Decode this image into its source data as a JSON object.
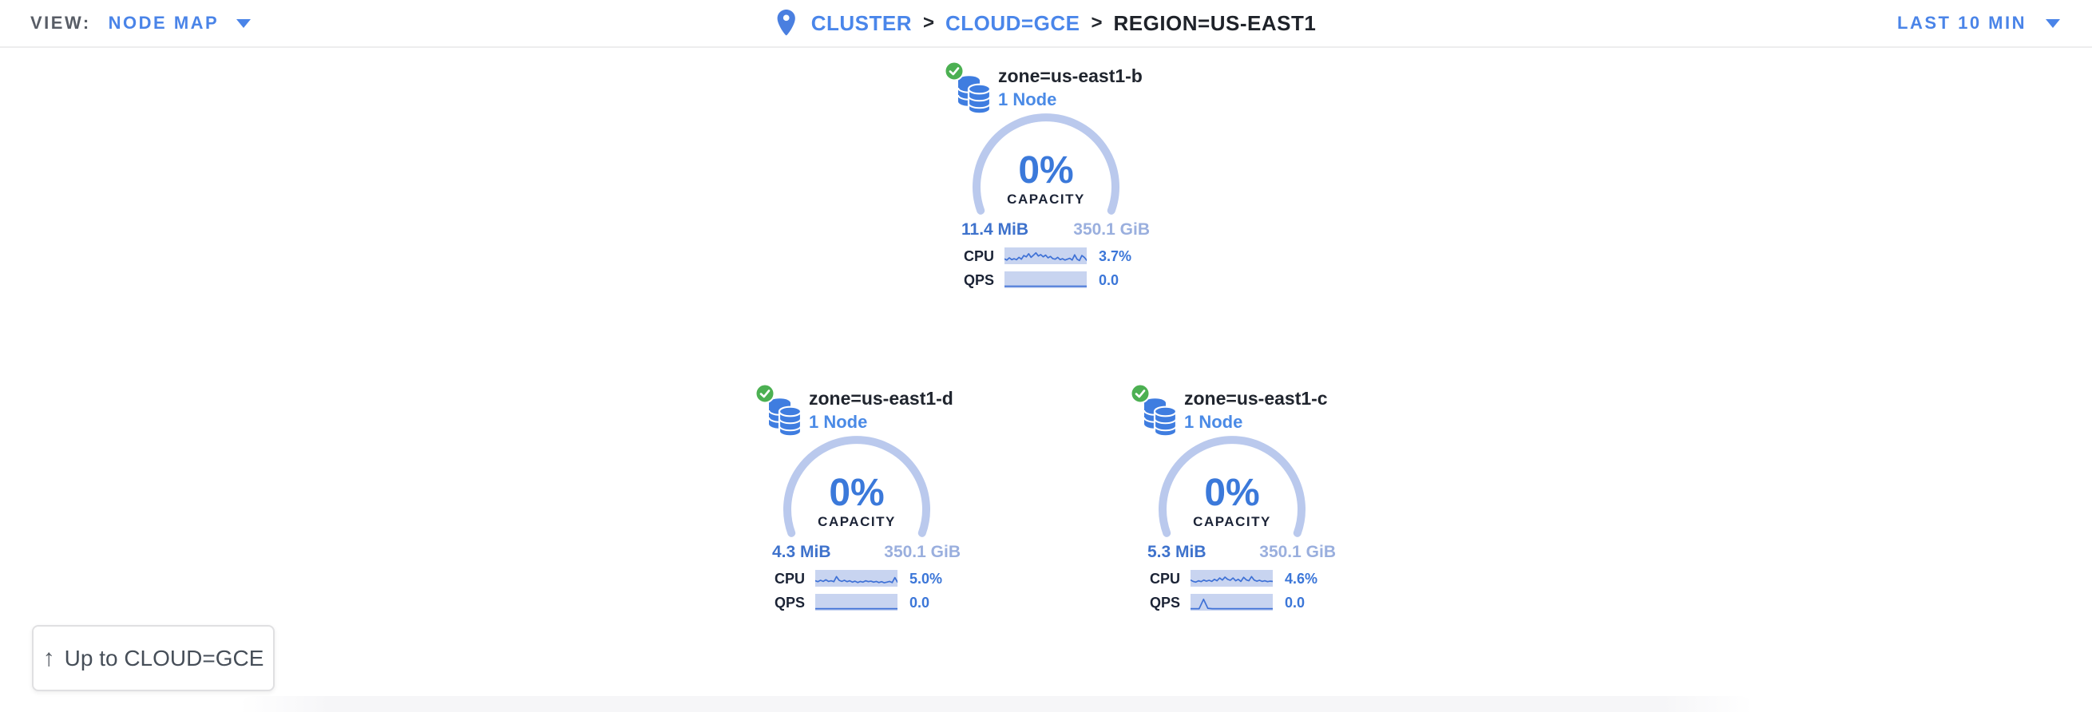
{
  "header": {
    "view_label": "VIEW:",
    "view_value": "NODE MAP",
    "breadcrumb_separator": ">",
    "breadcrumb": [
      {
        "label": "CLUSTER"
      },
      {
        "label": "CLOUD=GCE"
      },
      {
        "label": "REGION=US-EAST1"
      }
    ],
    "time_range": "LAST 10 MIN"
  },
  "zones": [
    {
      "name": "zone=us-east1-b",
      "node_count": "1 Node",
      "status": "healthy",
      "capacity_pct": "0%",
      "capacity_label": "CAPACITY",
      "used": "11.4 MiB",
      "total": "350.1 GiB",
      "cpu_label": "CPU",
      "cpu_value": "3.7%",
      "qps_label": "QPS",
      "qps_value": "0.0",
      "cpu_sparkline": [
        0.3,
        0.22,
        0.38,
        0.25,
        0.32,
        0.24,
        0.42,
        0.28,
        0.55,
        0.45,
        0.68,
        0.42,
        0.58,
        0.75,
        0.52,
        0.62,
        0.45,
        0.58,
        0.38,
        0.48,
        0.32,
        0.28,
        0.42,
        0.25,
        0.32,
        0.22,
        0.28,
        0.35,
        0.22,
        0.6,
        0.28,
        0.18,
        0.55,
        0.42,
        0.2
      ],
      "qps_sparkline": [
        0.05,
        0.05,
        0.05,
        0.05,
        0.05,
        0.05,
        0.05,
        0.05,
        0.05,
        0.05,
        0.05,
        0.05,
        0.05,
        0.05,
        0.05,
        0.05,
        0.05,
        0.05,
        0.05,
        0.05
      ]
    },
    {
      "name": "zone=us-east1-d",
      "node_count": "1 Node",
      "status": "healthy",
      "capacity_pct": "0%",
      "capacity_label": "CAPACITY",
      "used": "4.3 MiB",
      "total": "350.1 GiB",
      "cpu_label": "CPU",
      "cpu_value": "5.0%",
      "qps_label": "QPS",
      "qps_value": "0.0",
      "cpu_sparkline": [
        0.35,
        0.28,
        0.38,
        0.3,
        0.42,
        0.3,
        0.35,
        0.28,
        0.65,
        0.38,
        0.3,
        0.38,
        0.28,
        0.35,
        0.25,
        0.32,
        0.22,
        0.3,
        0.25,
        0.35,
        0.28,
        0.32,
        0.25,
        0.3,
        0.22,
        0.28,
        0.2,
        0.25,
        0.3,
        0.22,
        0.58,
        0.25
      ],
      "qps_sparkline": [
        0.05,
        0.05,
        0.05,
        0.05,
        0.05,
        0.05,
        0.05,
        0.05,
        0.05,
        0.05,
        0.05,
        0.05,
        0.05,
        0.05,
        0.05,
        0.05,
        0.05,
        0.05,
        0.05,
        0.05
      ]
    },
    {
      "name": "zone=us-east1-c",
      "node_count": "1 Node",
      "status": "healthy",
      "capacity_pct": "0%",
      "capacity_label": "CAPACITY",
      "used": "5.3 MiB",
      "total": "350.1 GiB",
      "cpu_label": "CPU",
      "cpu_value": "4.6%",
      "qps_label": "QPS",
      "qps_value": "0.0",
      "cpu_sparkline": [
        0.4,
        0.3,
        0.25,
        0.35,
        0.28,
        0.4,
        0.32,
        0.38,
        0.3,
        0.45,
        0.35,
        0.55,
        0.4,
        0.62,
        0.45,
        0.38,
        0.55,
        0.35,
        0.45,
        0.3,
        0.6,
        0.42,
        0.35,
        0.65,
        0.4,
        0.32,
        0.38,
        0.3,
        0.35,
        0.28,
        0.32,
        0.3
      ],
      "qps_sparkline": [
        0.05,
        0.05,
        0.05,
        0.75,
        0.08,
        0.05,
        0.05,
        0.05,
        0.05,
        0.05,
        0.05,
        0.05,
        0.05,
        0.05,
        0.05,
        0.05,
        0.05,
        0.05,
        0.05,
        0.05
      ]
    }
  ],
  "up_button": {
    "label": "Up to CLOUD=GCE"
  },
  "colors": {
    "link_blue": "#4a86ea",
    "accent_blue": "#3b79da",
    "gauge_arc": "#bac9ed",
    "spark_bg": "#c8d4f0",
    "spark_line": "#3e71d6",
    "total_muted_blue": "#9aafde",
    "healthy_green": "#4cb052",
    "dark_text": "#20252e"
  }
}
